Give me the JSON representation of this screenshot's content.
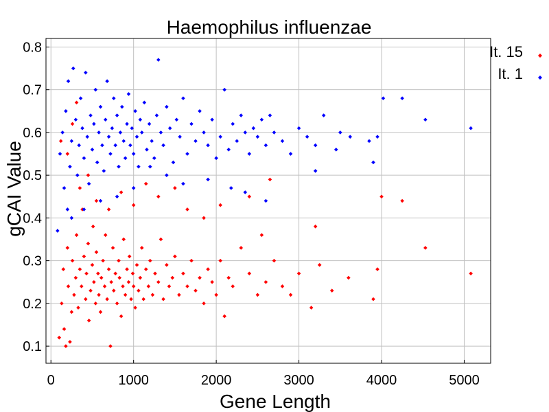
{
  "chart_data": {
    "type": "scatter",
    "title": "Haemophilus influenzae",
    "xlabel": "Gene Length",
    "ylabel": "gCAI Value",
    "xlim": [
      -60,
      5320
    ],
    "ylim": [
      0.06,
      0.82
    ],
    "xticks": [
      0,
      1000,
      2000,
      3000,
      4000,
      5000
    ],
    "yticks": [
      0.1,
      0.2,
      0.3,
      0.4,
      0.5,
      0.6,
      0.7,
      0.8
    ],
    "grid": true,
    "legend": {
      "position": "top-right (outside plot)"
    },
    "series": [
      {
        "name": "It. 15",
        "color": "#ff0000",
        "marker": "diamond",
        "points": [
          [
            100,
            0.12
          ],
          [
            130,
            0.2
          ],
          [
            150,
            0.28
          ],
          [
            160,
            0.14
          ],
          [
            180,
            0.1
          ],
          [
            200,
            0.33
          ],
          [
            210,
            0.24
          ],
          [
            230,
            0.11
          ],
          [
            250,
            0.18
          ],
          [
            260,
            0.3
          ],
          [
            280,
            0.22
          ],
          [
            300,
            0.26
          ],
          [
            310,
            0.36
          ],
          [
            330,
            0.19
          ],
          [
            350,
            0.28
          ],
          [
            370,
            0.24
          ],
          [
            380,
            0.42
          ],
          [
            400,
            0.31
          ],
          [
            420,
            0.21
          ],
          [
            430,
            0.27
          ],
          [
            450,
            0.34
          ],
          [
            460,
            0.16
          ],
          [
            480,
            0.23
          ],
          [
            500,
            0.29
          ],
          [
            510,
            0.38
          ],
          [
            520,
            0.25
          ],
          [
            540,
            0.2
          ],
          [
            550,
            0.32
          ],
          [
            570,
            0.27
          ],
          [
            580,
            0.22
          ],
          [
            600,
            0.18
          ],
          [
            610,
            0.26
          ],
          [
            630,
            0.3
          ],
          [
            650,
            0.24
          ],
          [
            660,
            0.36
          ],
          [
            680,
            0.21
          ],
          [
            700,
            0.28
          ],
          [
            720,
            0.1
          ],
          [
            730,
            0.25
          ],
          [
            750,
            0.33
          ],
          [
            760,
            0.23
          ],
          [
            780,
            0.27
          ],
          [
            800,
            0.2
          ],
          [
            820,
            0.3
          ],
          [
            830,
            0.26
          ],
          [
            850,
            0.17
          ],
          [
            870,
            0.24
          ],
          [
            880,
            0.35
          ],
          [
            900,
            0.22
          ],
          [
            920,
            0.28
          ],
          [
            940,
            0.25
          ],
          [
            950,
            0.31
          ],
          [
            970,
            0.21
          ],
          [
            990,
            0.27
          ],
          [
            1000,
            0.24
          ],
          [
            1020,
            0.19
          ],
          [
            1040,
            0.29
          ],
          [
            1060,
            0.23
          ],
          [
            1080,
            0.26
          ],
          [
            1100,
            0.33
          ],
          [
            1120,
            0.21
          ],
          [
            1150,
            0.28
          ],
          [
            1180,
            0.24
          ],
          [
            1200,
            0.3
          ],
          [
            1230,
            0.22
          ],
          [
            1260,
            0.27
          ],
          [
            1300,
            0.25
          ],
          [
            1330,
            0.35
          ],
          [
            1360,
            0.21
          ],
          [
            1400,
            0.29
          ],
          [
            1430,
            0.24
          ],
          [
            1470,
            0.26
          ],
          [
            1500,
            0.31
          ],
          [
            1550,
            0.22
          ],
          [
            1600,
            0.27
          ],
          [
            1650,
            0.24
          ],
          [
            1700,
            0.3
          ],
          [
            1750,
            0.23
          ],
          [
            1800,
            0.26
          ],
          [
            1850,
            0.2
          ],
          [
            1900,
            0.28
          ],
          [
            1950,
            0.25
          ],
          [
            2000,
            0.22
          ],
          [
            2050,
            0.3
          ],
          [
            2100,
            0.17
          ],
          [
            2150,
            0.26
          ],
          [
            2200,
            0.24
          ],
          [
            2300,
            0.33
          ],
          [
            2400,
            0.27
          ],
          [
            2500,
            0.22
          ],
          [
            2550,
            0.36
          ],
          [
            2600,
            0.25
          ],
          [
            2700,
            0.3
          ],
          [
            2800,
            0.24
          ],
          [
            2900,
            0.22
          ],
          [
            3000,
            0.27
          ],
          [
            3150,
            0.19
          ],
          [
            3250,
            0.29
          ],
          [
            3400,
            0.23
          ],
          [
            3600,
            0.26
          ],
          [
            3900,
            0.21
          ],
          [
            3950,
            0.28
          ],
          [
            4000,
            0.45
          ],
          [
            4250,
            0.44
          ],
          [
            4530,
            0.33
          ],
          [
            5080,
            0.27
          ],
          [
            350,
            0.47
          ],
          [
            450,
            0.5
          ],
          [
            550,
            0.44
          ],
          [
            700,
            0.42
          ],
          [
            850,
            0.46
          ],
          [
            1000,
            0.43
          ],
          [
            1150,
            0.48
          ],
          [
            1300,
            0.45
          ],
          [
            1500,
            0.47
          ],
          [
            1650,
            0.42
          ],
          [
            1850,
            0.4
          ],
          [
            2050,
            0.43
          ],
          [
            2400,
            0.45
          ],
          [
            2650,
            0.49
          ],
          [
            3200,
            0.38
          ],
          [
            120,
            0.58
          ],
          [
            200,
            0.55
          ],
          [
            260,
            0.62
          ],
          [
            310,
            0.67
          ]
        ]
      },
      {
        "name": "It. 1",
        "color": "#0000ff",
        "marker": "diamond",
        "points": [
          [
            80,
            0.37
          ],
          [
            110,
            0.55
          ],
          [
            140,
            0.6
          ],
          [
            160,
            0.47
          ],
          [
            180,
            0.65
          ],
          [
            200,
            0.42
          ],
          [
            210,
            0.72
          ],
          [
            230,
            0.52
          ],
          [
            250,
            0.58
          ],
          [
            270,
            0.75
          ],
          [
            300,
            0.63
          ],
          [
            320,
            0.5
          ],
          [
            340,
            0.57
          ],
          [
            360,
            0.68
          ],
          [
            380,
            0.61
          ],
          [
            400,
            0.54
          ],
          [
            420,
            0.74
          ],
          [
            440,
            0.59
          ],
          [
            460,
            0.48
          ],
          [
            480,
            0.64
          ],
          [
            500,
            0.56
          ],
          [
            520,
            0.62
          ],
          [
            540,
            0.7
          ],
          [
            560,
            0.53
          ],
          [
            580,
            0.6
          ],
          [
            600,
            0.66
          ],
          [
            620,
            0.57
          ],
          [
            640,
            0.51
          ],
          [
            660,
            0.63
          ],
          [
            680,
            0.72
          ],
          [
            700,
            0.59
          ],
          [
            720,
            0.55
          ],
          [
            740,
            0.61
          ],
          [
            760,
            0.68
          ],
          [
            780,
            0.57
          ],
          [
            800,
            0.64
          ],
          [
            820,
            0.52
          ],
          [
            840,
            0.6
          ],
          [
            860,
            0.66
          ],
          [
            880,
            0.58
          ],
          [
            900,
            0.54
          ],
          [
            920,
            0.62
          ],
          [
            940,
            0.69
          ],
          [
            960,
            0.57
          ],
          [
            980,
            0.61
          ],
          [
            1000,
            0.55
          ],
          [
            1020,
            0.65
          ],
          [
            1040,
            0.59
          ],
          [
            1060,
            0.52
          ],
          [
            1080,
            0.63
          ],
          [
            1100,
            0.6
          ],
          [
            1130,
            0.67
          ],
          [
            1160,
            0.56
          ],
          [
            1190,
            0.62
          ],
          [
            1220,
            0.58
          ],
          [
            1250,
            0.54
          ],
          [
            1280,
            0.64
          ],
          [
            1300,
            0.77
          ],
          [
            1330,
            0.6
          ],
          [
            1360,
            0.57
          ],
          [
            1400,
            0.66
          ],
          [
            1440,
            0.61
          ],
          [
            1480,
            0.53
          ],
          [
            1520,
            0.63
          ],
          [
            1560,
            0.59
          ],
          [
            1600,
            0.68
          ],
          [
            1650,
            0.55
          ],
          [
            1700,
            0.62
          ],
          [
            1750,
            0.58
          ],
          [
            1800,
            0.65
          ],
          [
            1850,
            0.6
          ],
          [
            1900,
            0.57
          ],
          [
            1950,
            0.63
          ],
          [
            2000,
            0.54
          ],
          [
            2050,
            0.59
          ],
          [
            2100,
            0.7
          ],
          [
            2150,
            0.56
          ],
          [
            2200,
            0.62
          ],
          [
            2250,
            0.58
          ],
          [
            2300,
            0.64
          ],
          [
            2350,
            0.6
          ],
          [
            2400,
            0.55
          ],
          [
            2450,
            0.61
          ],
          [
            2500,
            0.59
          ],
          [
            2550,
            0.63
          ],
          [
            2600,
            0.57
          ],
          [
            2650,
            0.64
          ],
          [
            2700,
            0.6
          ],
          [
            2800,
            0.58
          ],
          [
            2900,
            0.55
          ],
          [
            3000,
            0.61
          ],
          [
            3100,
            0.59
          ],
          [
            3200,
            0.57
          ],
          [
            3300,
            0.64
          ],
          [
            3450,
            0.56
          ],
          [
            3500,
            0.6
          ],
          [
            3620,
            0.59
          ],
          [
            3850,
            0.58
          ],
          [
            3900,
            0.53
          ],
          [
            3950,
            0.59
          ],
          [
            4020,
            0.68
          ],
          [
            4250,
            0.68
          ],
          [
            4530,
            0.63
          ],
          [
            5080,
            0.61
          ],
          [
            2180,
            0.47
          ],
          [
            2350,
            0.46
          ],
          [
            2600,
            0.44
          ],
          [
            3200,
            0.51
          ],
          [
            1900,
            0.49
          ],
          [
            1600,
            0.48
          ],
          [
            1400,
            0.5
          ],
          [
            1200,
            0.52
          ],
          [
            1000,
            0.47
          ],
          [
            800,
            0.45
          ],
          [
            600,
            0.44
          ],
          [
            400,
            0.42
          ],
          [
            250,
            0.4
          ]
        ]
      }
    ]
  }
}
